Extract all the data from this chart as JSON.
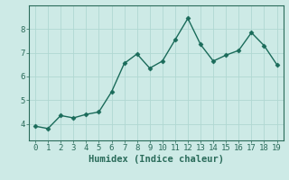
{
  "x": [
    0,
    1,
    2,
    3,
    4,
    5,
    6,
    7,
    8,
    9,
    10,
    11,
    12,
    13,
    14,
    15,
    16,
    17,
    18,
    19
  ],
  "y": [
    3.9,
    3.8,
    4.35,
    4.25,
    4.4,
    4.5,
    5.35,
    6.55,
    6.95,
    6.35,
    6.65,
    7.55,
    8.45,
    7.35,
    6.65,
    6.9,
    7.1,
    7.85,
    7.3,
    6.5
  ],
  "line_color": "#1a6b5a",
  "marker": "D",
  "marker_size": 2.5,
  "bg_color": "#cdeae6",
  "grid_color": "#b0d8d2",
  "xlabel": "Humidex (Indice chaleur)",
  "xlim": [
    -0.5,
    19.5
  ],
  "ylim": [
    3.3,
    9.0
  ],
  "yticks": [
    4,
    5,
    6,
    7,
    8
  ],
  "xticks": [
    0,
    1,
    2,
    3,
    4,
    5,
    6,
    7,
    8,
    9,
    10,
    11,
    12,
    13,
    14,
    15,
    16,
    17,
    18,
    19
  ],
  "tick_color": "#2a6b5a",
  "axis_color": "#2a6b5a",
  "xlabel_fontsize": 7.5,
  "tick_fontsize": 6.5,
  "linewidth": 1.0
}
